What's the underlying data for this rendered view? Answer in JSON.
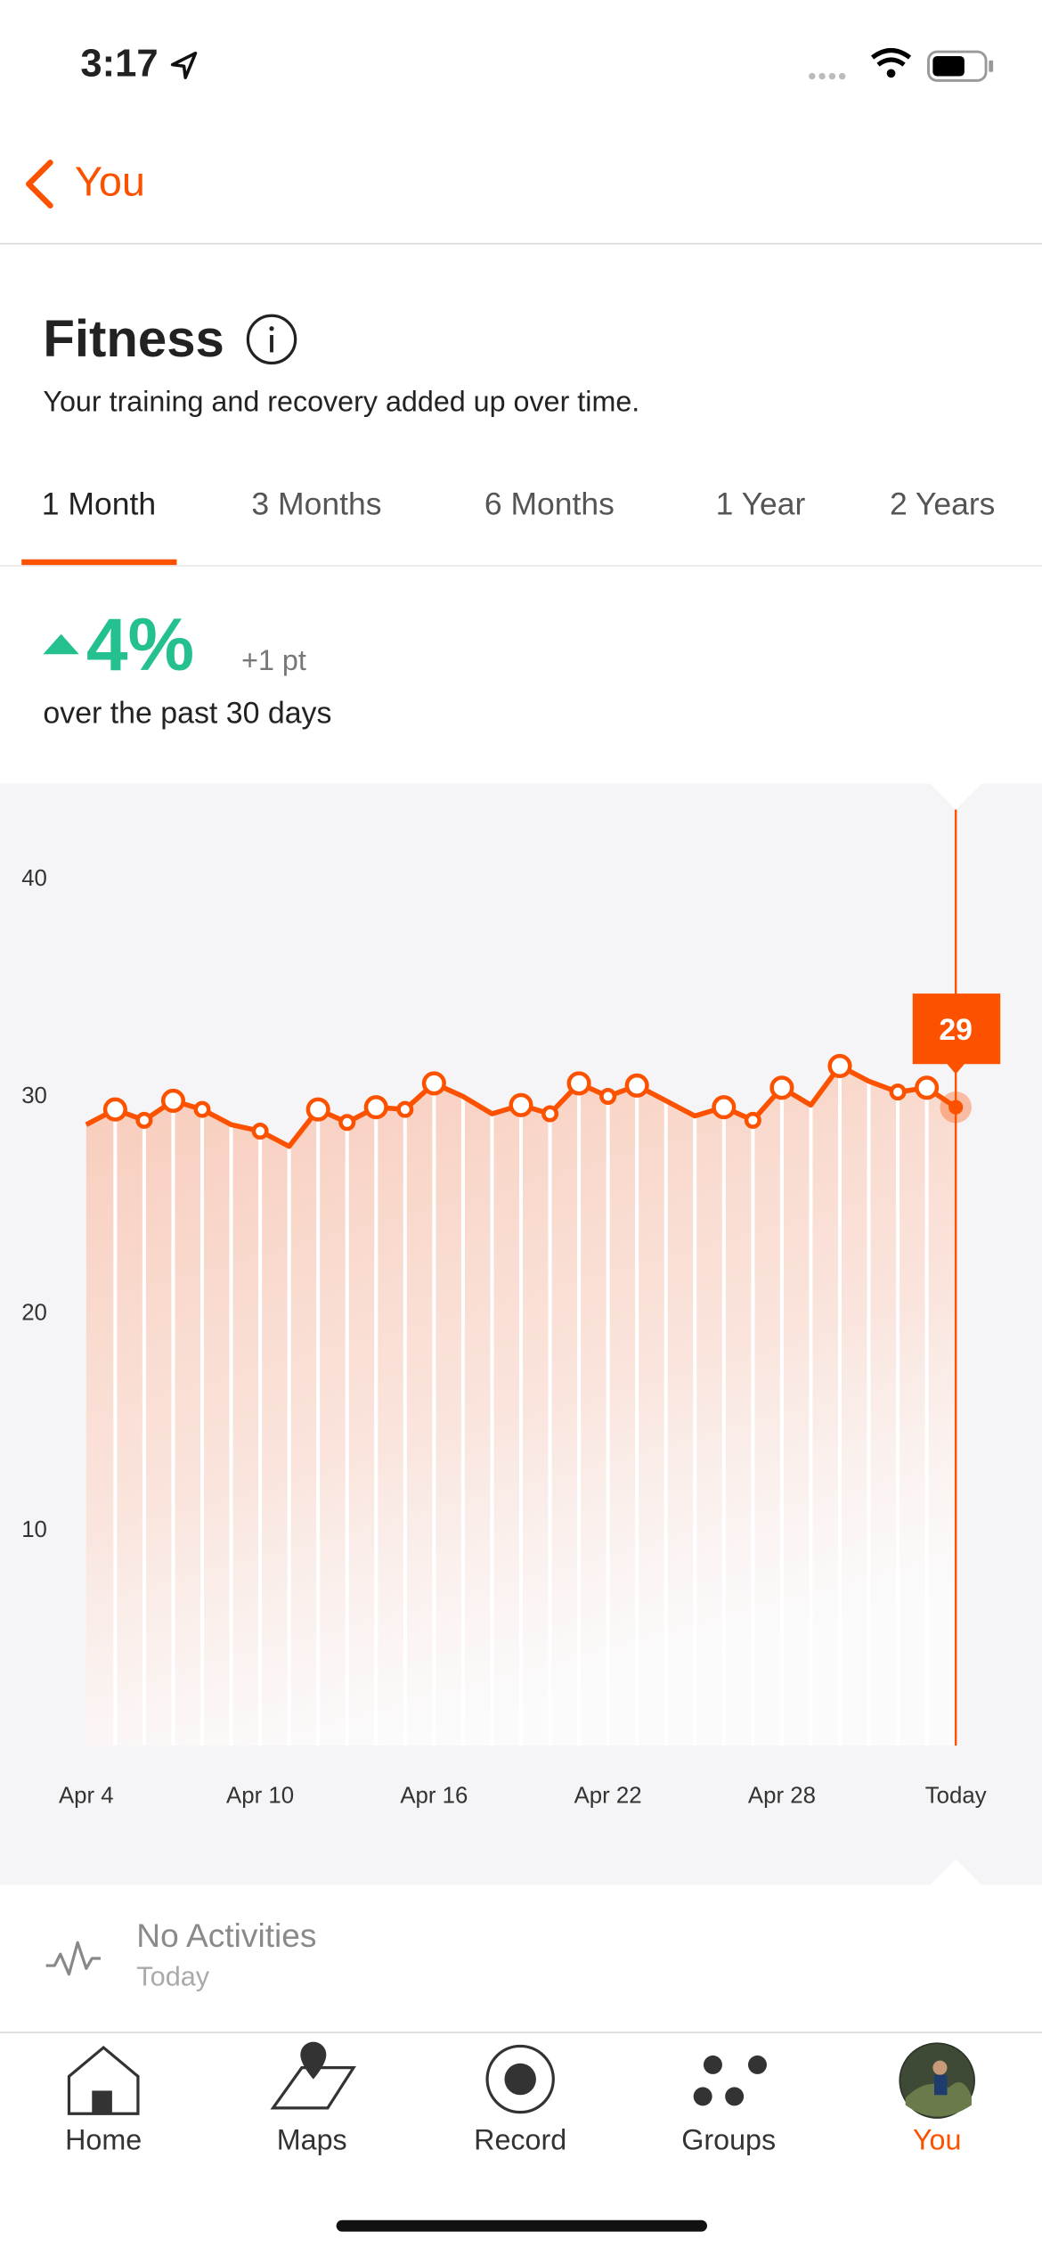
{
  "status_bar": {
    "time": "3:17"
  },
  "nav": {
    "back": "You"
  },
  "header": {
    "title": "Fitness",
    "subtitle": "Your training and recovery added up over time."
  },
  "tabs": {
    "items": [
      "1 Month",
      "3 Months",
      "6 Months",
      "1 Year",
      "2 Years"
    ],
    "selected": 0
  },
  "summary": {
    "change": "4%",
    "points": "+1 pt",
    "period": "over the past 30 days"
  },
  "chart_data": {
    "type": "line",
    "categories": [
      "Apr 4",
      null,
      null,
      null,
      null,
      null,
      "Apr 10",
      null,
      null,
      null,
      null,
      null,
      "Apr 16",
      null,
      null,
      null,
      null,
      null,
      "Apr 22",
      null,
      null,
      null,
      null,
      null,
      "Apr 28",
      null,
      null,
      null,
      null,
      null,
      "Today"
    ],
    "series": [
      {
        "color": "#fc5200",
        "values": [
          28.6,
          29.3,
          28.8,
          29.7,
          29.3,
          28.6,
          28.3,
          27.6,
          29.3,
          28.7,
          29.4,
          29.3,
          30.5,
          29.9,
          29.1,
          29.5,
          29.1,
          30.5,
          29.9,
          30.4,
          29.7,
          29.0,
          29.4,
          28.8,
          30.3,
          29.5,
          31.3,
          30.6,
          30.1,
          30.3,
          29.4
        ],
        "value_labels": [
          null,
          null,
          null,
          null,
          null,
          null,
          null,
          null,
          null,
          null,
          null,
          null,
          null,
          null,
          null,
          null,
          null,
          null,
          null,
          null,
          null,
          null,
          null,
          null,
          null,
          null,
          null,
          null,
          null,
          null,
          "29"
        ],
        "markers": [
          null,
          "large",
          "small",
          "large",
          "small",
          null,
          "small",
          null,
          "large",
          "small",
          "large",
          "small",
          "large",
          null,
          null,
          "large",
          "small",
          "large",
          "small",
          "large",
          null,
          null,
          "large",
          "small",
          "large",
          null,
          "large",
          null,
          "small",
          "large",
          "selected"
        ]
      }
    ],
    "ylim": [
      0,
      40
    ],
    "yticks": [
      10,
      20,
      30,
      40
    ],
    "grid": false
  },
  "activity": {
    "title": "No Activities",
    "date": "Today"
  },
  "tab_bar": {
    "items": [
      "Home",
      "Maps",
      "Record",
      "Groups",
      "You"
    ],
    "selected": 4
  }
}
